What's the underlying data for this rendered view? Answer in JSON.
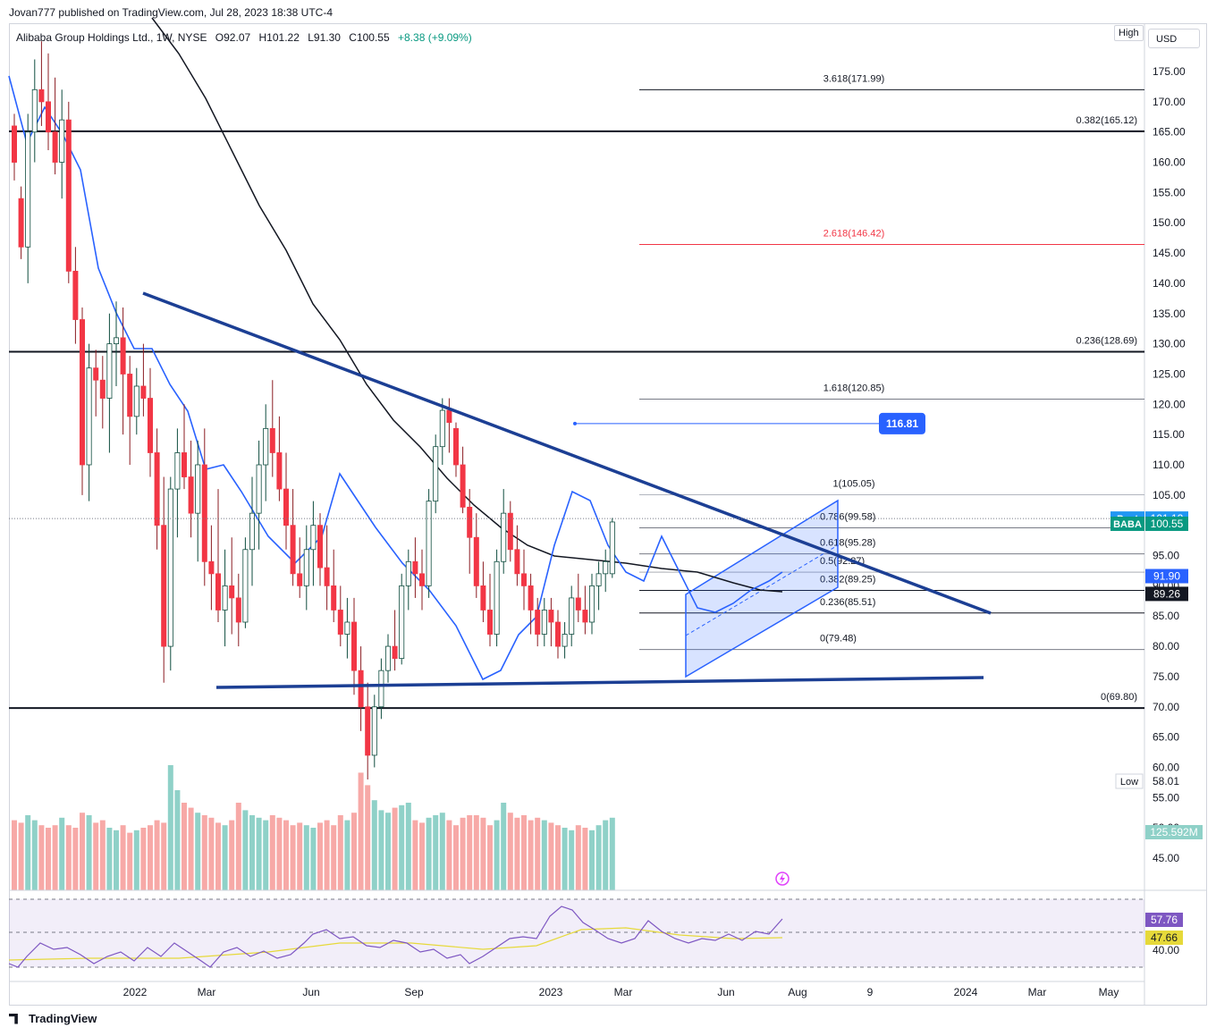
{
  "header": {
    "publisher_line": "Jovan777 published on TradingView.com, Jul 28, 2023 18:38 UTC-4"
  },
  "symbol_line": {
    "name": "Alibaba Group Holdings Ltd., 1W, NYSE",
    "open": "O92.07",
    "high": "H101.22",
    "low": "L91.30",
    "close": "C100.55",
    "change": "+8.38 (+9.09%)"
  },
  "buttons": {
    "currency": "USD",
    "high": "High",
    "low": "Low"
  },
  "footer": {
    "brand": "TradingView"
  },
  "colors": {
    "up": "#089981",
    "down": "#f23645",
    "up_vol": "#8fd1c8",
    "down_vol": "#f7a9a7",
    "trendline": "#1c3f94",
    "ema": "#2962ff",
    "sma": "#131722",
    "fib_extension": "#f23645",
    "rsi": "#7e57c2",
    "rsi_ma": "#e6d93a",
    "price_badge": "#089981",
    "post_badge": "#2196f3"
  },
  "chart_data": {
    "type": "candlestick",
    "title": "Alibaba Group Holdings Ltd., 1W, NYSE",
    "ylim": [
      40,
      180
    ],
    "y_ticks": [
      "175.00",
      "170.00",
      "165.00",
      "160.00",
      "155.00",
      "150.00",
      "145.00",
      "140.00",
      "135.00",
      "130.00",
      "125.00",
      "120.00",
      "115.00",
      "110.00",
      "105.00",
      "100.00",
      "95.00",
      "90.00",
      "85.00",
      "80.00",
      "75.00",
      "70.00",
      "65.00",
      "60.00",
      "55.00",
      "50.00",
      "45.00"
    ],
    "x_ticks": [
      "2022",
      "Mar",
      "Jun",
      "Sep",
      "2023",
      "Mar",
      "Jun",
      "Aug",
      "9",
      "2024",
      "Mar",
      "May"
    ],
    "candles": [
      [
        166,
        168,
        157,
        160
      ],
      [
        154,
        156,
        144,
        146
      ],
      [
        146,
        168,
        140,
        165
      ],
      [
        165,
        177,
        160,
        172
      ],
      [
        172,
        180,
        166,
        170
      ],
      [
        170,
        178,
        162,
        165
      ],
      [
        165,
        174,
        158,
        160
      ],
      [
        160,
        172,
        154,
        167
      ],
      [
        167,
        170,
        140,
        142
      ],
      [
        142,
        146,
        130,
        134
      ],
      [
        134,
        136,
        105,
        110
      ],
      [
        110,
        130,
        104,
        126
      ],
      [
        126,
        129,
        118,
        124
      ],
      [
        124,
        128,
        116,
        121
      ],
      [
        121,
        135,
        112,
        130
      ],
      [
        130,
        137,
        123,
        131
      ],
      [
        131,
        136,
        115,
        125
      ],
      [
        125,
        128,
        110,
        118
      ],
      [
        118,
        126,
        115,
        123
      ],
      [
        123,
        130,
        118,
        121
      ],
      [
        121,
        126,
        108,
        112
      ],
      [
        112,
        116,
        96,
        100
      ],
      [
        100,
        108,
        74,
        80
      ],
      [
        80,
        108,
        76,
        106
      ],
      [
        106,
        116,
        98,
        112
      ],
      [
        112,
        120,
        106,
        108
      ],
      [
        108,
        114,
        98,
        102
      ],
      [
        102,
        114,
        94,
        110
      ],
      [
        110,
        116,
        90,
        94
      ],
      [
        94,
        100,
        86,
        92
      ],
      [
        92,
        106,
        84,
        86
      ],
      [
        86,
        96,
        80,
        90
      ],
      [
        90,
        98,
        82,
        88
      ],
      [
        88,
        92,
        80,
        84
      ],
      [
        84,
        98,
        83,
        96
      ],
      [
        96,
        108,
        90,
        102
      ],
      [
        102,
        114,
        96,
        110
      ],
      [
        110,
        120,
        104,
        116
      ],
      [
        116,
        124,
        108,
        112
      ],
      [
        112,
        118,
        104,
        106
      ],
      [
        106,
        112,
        96,
        100
      ],
      [
        100,
        106,
        90,
        92
      ],
      [
        92,
        98,
        88,
        90
      ],
      [
        90,
        100,
        86,
        96
      ],
      [
        96,
        104,
        90,
        100
      ],
      [
        100,
        102,
        90,
        93
      ],
      [
        93,
        100,
        86,
        90
      ],
      [
        90,
        96,
        84,
        86
      ],
      [
        86,
        90,
        80,
        82
      ],
      [
        82,
        88,
        78,
        84
      ],
      [
        84,
        88,
        72,
        76
      ],
      [
        76,
        80,
        66,
        70
      ],
      [
        70,
        74,
        58,
        62
      ],
      [
        62,
        72,
        60,
        70
      ],
      [
        70,
        78,
        68,
        76
      ],
      [
        76,
        82,
        74,
        80
      ],
      [
        80,
        86,
        76,
        78
      ],
      [
        78,
        92,
        77,
        90
      ],
      [
        90,
        96,
        86,
        94
      ],
      [
        94,
        98,
        88,
        92
      ],
      [
        92,
        96,
        86,
        90
      ],
      [
        90,
        106,
        88,
        104
      ],
      [
        104,
        115,
        102,
        113
      ],
      [
        113,
        121,
        110,
        119
      ],
      [
        119,
        121,
        112,
        117
      ],
      [
        116,
        117,
        108,
        110
      ],
      [
        110,
        113,
        102,
        103
      ],
      [
        103,
        106,
        92,
        98
      ],
      [
        98,
        102,
        88,
        90
      ],
      [
        90,
        94,
        84,
        86
      ],
      [
        86,
        92,
        80,
        82
      ],
      [
        82,
        96,
        80,
        94
      ],
      [
        94,
        106,
        92,
        102
      ],
      [
        102,
        104,
        94,
        96
      ],
      [
        96,
        100,
        90,
        92
      ],
      [
        92,
        96,
        86,
        90
      ],
      [
        90,
        92,
        82,
        86
      ],
      [
        86,
        88,
        80,
        82
      ],
      [
        82,
        88,
        80,
        86
      ],
      [
        86,
        88,
        80,
        84
      ],
      [
        84,
        86,
        78,
        80
      ],
      [
        80,
        84,
        78,
        82
      ],
      [
        82,
        90,
        80,
        88
      ],
      [
        88,
        92,
        84,
        86
      ],
      [
        86,
        90,
        82,
        84
      ],
      [
        84,
        92,
        82,
        90
      ],
      [
        90,
        94,
        86,
        92
      ],
      [
        92,
        96,
        89,
        94
      ],
      [
        92,
        101.22,
        91.3,
        100.55
      ]
    ],
    "volume_scale_max": 90,
    "fibonacci_levels": [
      {
        "label": "3.618(171.99)",
        "value": 171.99
      },
      {
        "label": "0.382(165.12)",
        "value": 165.12
      },
      {
        "label": "2.618(146.42)",
        "value": 146.42
      },
      {
        "label": "0.236(128.69)",
        "value": 128.69
      },
      {
        "label": "1.618(120.85)",
        "value": 120.85
      },
      {
        "label": "1(105.05)",
        "value": 105.05
      },
      {
        "label": "0.786(99.58)",
        "value": 99.58
      },
      {
        "label": "0.618(95.28)",
        "value": 95.28
      },
      {
        "label": "0.5(92.27)",
        "value": 92.27
      },
      {
        "label": "0.382(89.25)",
        "value": 89.25
      },
      {
        "label": "0.236(85.51)",
        "value": 85.51
      },
      {
        "label": "0(79.48)",
        "value": 79.48
      },
      {
        "label": "0(69.80)",
        "value": 69.8
      }
    ],
    "horizontal_ray": {
      "label": "116.81",
      "value": 116.81
    },
    "price_labels": [
      {
        "label": "Post",
        "value": "101.12"
      },
      {
        "label": "BABA",
        "value": "100.55"
      },
      {
        "label": "",
        "value": "91.90"
      },
      {
        "label": "",
        "value": "89.26"
      }
    ],
    "low_value": "58.01",
    "volume_label": "125.592M",
    "rsi": {
      "ticks": [
        "40.00"
      ],
      "value": "57.76",
      "ma_value": "47.66"
    }
  }
}
